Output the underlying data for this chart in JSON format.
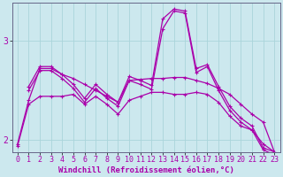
{
  "background_color": "#cce8ee",
  "grid_color": "#aad4da",
  "line_color": "#aa00aa",
  "xlabel": "Windchill (Refroidissement éolien,°C)",
  "xlabel_fontsize": 6.5,
  "tick_fontsize": 6,
  "xlim": [
    -0.5,
    23.5
  ],
  "ylim": [
    1.88,
    3.38
  ],
  "yticks": [
    2,
    3
  ],
  "xticks": [
    0,
    1,
    2,
    3,
    4,
    5,
    6,
    7,
    8,
    9,
    10,
    11,
    12,
    13,
    14,
    15,
    16,
    17,
    18,
    19,
    20,
    21,
    22,
    23
  ],
  "series": [
    {
      "x": [
        0,
        1,
        2,
        3,
        4,
        5,
        6,
        7,
        8,
        9,
        10,
        11,
        12,
        13,
        14,
        15,
        16,
        17,
        18,
        19,
        20,
        21,
        22,
        23
      ],
      "y": [
        1.96,
        2.4,
        2.72,
        2.72,
        2.66,
        2.62,
        2.56,
        2.5,
        2.44,
        2.38,
        2.6,
        2.61,
        2.62,
        2.62,
        2.63,
        2.63,
        2.6,
        2.57,
        2.52,
        2.46,
        2.36,
        2.26,
        2.18,
        1.88
      ],
      "marker": "+"
    },
    {
      "x": [
        1,
        2,
        3,
        4,
        5,
        6,
        7,
        8,
        9,
        10,
        11,
        12,
        13,
        14,
        15,
        16,
        17,
        18,
        19,
        20,
        21,
        22,
        23
      ],
      "y": [
        2.54,
        2.74,
        2.74,
        2.66,
        2.56,
        2.42,
        2.56,
        2.46,
        2.38,
        2.64,
        2.6,
        2.55,
        3.22,
        3.32,
        3.3,
        2.72,
        2.76,
        2.54,
        2.34,
        2.22,
        2.14,
        1.92,
        1.88
      ],
      "marker": "+"
    },
    {
      "x": [
        1,
        2,
        3,
        4,
        5,
        6,
        7,
        8,
        9,
        10,
        11,
        12,
        13,
        14,
        15,
        16,
        17,
        18,
        19,
        20,
        21,
        22,
        23
      ],
      "y": [
        2.5,
        2.7,
        2.7,
        2.62,
        2.52,
        2.38,
        2.52,
        2.42,
        2.34,
        2.6,
        2.56,
        2.51,
        3.12,
        3.3,
        3.28,
        2.68,
        2.74,
        2.5,
        2.3,
        2.18,
        2.1,
        1.9,
        1.85
      ],
      "marker": "+"
    },
    {
      "x": [
        0,
        1,
        2,
        3,
        4,
        5,
        6,
        7,
        8,
        9,
        10,
        11,
        12,
        13,
        14,
        15,
        16,
        17,
        18,
        19,
        20,
        21,
        22,
        23
      ],
      "y": [
        1.94,
        2.36,
        2.44,
        2.44,
        2.44,
        2.46,
        2.36,
        2.44,
        2.36,
        2.26,
        2.4,
        2.44,
        2.48,
        2.48,
        2.46,
        2.46,
        2.48,
        2.46,
        2.38,
        2.24,
        2.14,
        2.1,
        1.96,
        1.88
      ],
      "marker": "+"
    }
  ]
}
